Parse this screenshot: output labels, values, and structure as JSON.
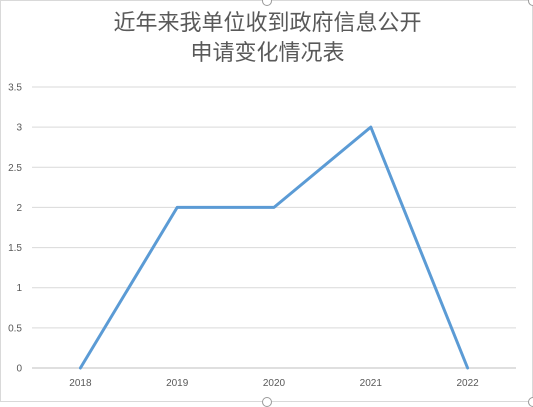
{
  "chart_data": {
    "type": "line",
    "title_lines": [
      "近年来我单位收到政府信息公开",
      "申请变化情况表"
    ],
    "categories": [
      "2018",
      "2019",
      "2020",
      "2021",
      "2022"
    ],
    "series": [
      {
        "values": [
          0,
          2,
          2,
          3,
          0
        ],
        "color": "#5b9bd5"
      }
    ],
    "ylim": [
      0,
      3.5
    ],
    "yticks": [
      "0",
      "0.5",
      "1",
      "1.5",
      "2",
      "2.5",
      "3",
      "3.5"
    ],
    "grid": true,
    "legend": "none"
  }
}
